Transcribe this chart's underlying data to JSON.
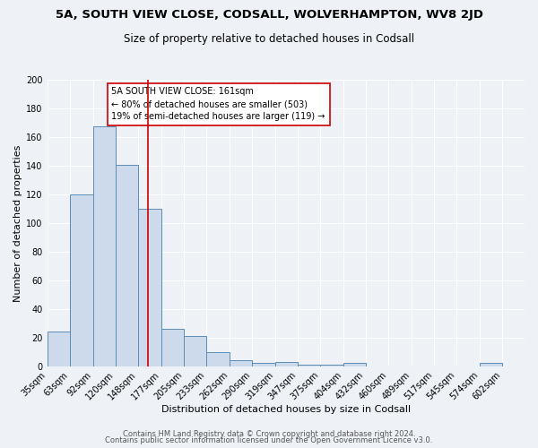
{
  "title": "5A, SOUTH VIEW CLOSE, CODSALL, WOLVERHAMPTON, WV8 2JD",
  "subtitle": "Size of property relative to detached houses in Codsall",
  "xlabel": "Distribution of detached houses by size in Codsall",
  "ylabel": "Number of detached properties",
  "bin_labels": [
    "35sqm",
    "63sqm",
    "92sqm",
    "120sqm",
    "148sqm",
    "177sqm",
    "205sqm",
    "233sqm",
    "262sqm",
    "290sqm",
    "319sqm",
    "347sqm",
    "375sqm",
    "404sqm",
    "432sqm",
    "460sqm",
    "489sqm",
    "517sqm",
    "545sqm",
    "574sqm",
    "602sqm"
  ],
  "bin_edges": [
    35,
    63,
    92,
    120,
    148,
    177,
    205,
    233,
    262,
    290,
    319,
    347,
    375,
    404,
    432,
    460,
    489,
    517,
    545,
    574,
    602
  ],
  "bar_heights": [
    24,
    120,
    168,
    141,
    110,
    26,
    21,
    10,
    4,
    2,
    3,
    1,
    1,
    2,
    0,
    0,
    0,
    0,
    0,
    2
  ],
  "bar_color": "#ccdaeb",
  "bar_edge_color": "#5b8db8",
  "vline_x": 161,
  "vline_color": "#cc0000",
  "ylim": [
    0,
    200
  ],
  "yticks": [
    0,
    20,
    40,
    60,
    80,
    100,
    120,
    140,
    160,
    180,
    200
  ],
  "annotation_title": "5A SOUTH VIEW CLOSE: 161sqm",
  "annotation_line1": "← 80% of detached houses are smaller (503)",
  "annotation_line2": "19% of semi-detached houses are larger (119) →",
  "footer_line1": "Contains HM Land Registry data © Crown copyright and database right 2024.",
  "footer_line2": "Contains public sector information licensed under the Open Government Licence v3.0.",
  "background_color": "#eef2f7",
  "grid_color": "#ffffff",
  "title_fontsize": 9.5,
  "subtitle_fontsize": 8.5,
  "axis_label_fontsize": 8,
  "tick_fontsize": 7,
  "annotation_fontsize": 7,
  "footer_fontsize": 6
}
